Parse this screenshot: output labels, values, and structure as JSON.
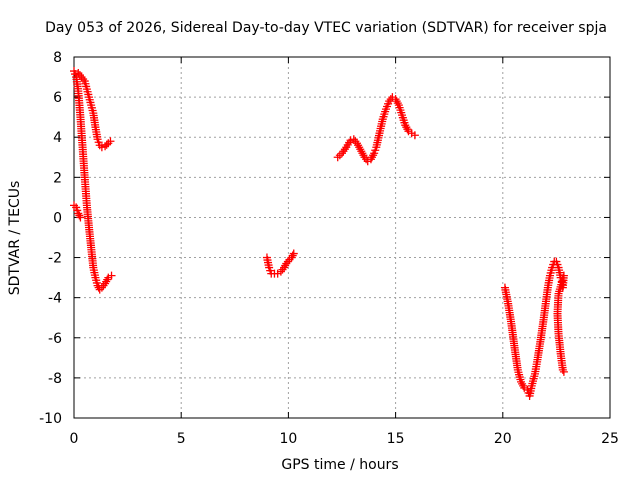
{
  "chart_data": {
    "type": "scatter",
    "title": "Day 053 of 2026, Sidereal Day-to-day VTEC variation (SDTVAR) for receiver spja",
    "xlabel": "GPS time / hours",
    "ylabel": "SDTVAR / TECUs",
    "xlim": [
      0,
      25
    ],
    "ylim": [
      -10,
      8
    ],
    "xticks": [
      0,
      5,
      10,
      15,
      20,
      25
    ],
    "yticks": [
      -10,
      -8,
      -6,
      -4,
      -2,
      0,
      2,
      4,
      6,
      8
    ],
    "grid": true,
    "marker": "plus",
    "color": "#ff0000",
    "series": [
      {
        "points": [
          [
            0.0,
            0.6
          ],
          [
            0.1,
            0.5
          ],
          [
            0.2,
            0.2
          ],
          [
            0.3,
            0.0
          ],
          [
            0.0,
            7.3
          ],
          [
            0.1,
            7.0
          ],
          [
            0.2,
            6.3
          ],
          [
            0.3,
            5.0
          ],
          [
            0.4,
            3.5
          ],
          [
            0.5,
            2.0
          ],
          [
            0.6,
            0.6
          ],
          [
            0.7,
            -0.5
          ],
          [
            0.8,
            -1.5
          ],
          [
            0.9,
            -2.5
          ],
          [
            1.0,
            -3.0
          ],
          [
            1.1,
            -3.4
          ],
          [
            1.2,
            -3.6
          ],
          [
            1.3,
            -3.5
          ],
          [
            1.45,
            -3.3
          ],
          [
            1.6,
            -3.0
          ],
          [
            1.75,
            -2.9
          ],
          [
            0.2,
            7.2
          ],
          [
            0.35,
            7.0
          ],
          [
            0.5,
            6.8
          ],
          [
            0.6,
            6.4
          ],
          [
            0.7,
            6.0
          ],
          [
            0.8,
            5.6
          ],
          [
            0.9,
            5.2
          ],
          [
            1.0,
            4.5
          ],
          [
            1.1,
            3.9
          ],
          [
            1.2,
            3.6
          ],
          [
            1.3,
            3.5
          ],
          [
            1.45,
            3.55
          ],
          [
            1.6,
            3.7
          ],
          [
            1.7,
            3.8
          ],
          [
            9.0,
            -2.0
          ],
          [
            9.1,
            -2.5
          ],
          [
            9.2,
            -2.8
          ],
          [
            9.35,
            -2.8
          ],
          [
            9.5,
            -2.8
          ],
          [
            9.65,
            -2.7
          ],
          [
            9.8,
            -2.5
          ],
          [
            9.9,
            -2.3
          ],
          [
            10.05,
            -2.1
          ],
          [
            10.15,
            -2.0
          ],
          [
            10.25,
            -1.8
          ],
          [
            12.3,
            3.0
          ],
          [
            12.5,
            3.2
          ],
          [
            12.7,
            3.5
          ],
          [
            12.9,
            3.85
          ],
          [
            13.05,
            3.9
          ],
          [
            13.2,
            3.7
          ],
          [
            13.4,
            3.3
          ],
          [
            13.55,
            3.0
          ],
          [
            13.7,
            2.8
          ],
          [
            13.85,
            2.9
          ],
          [
            14.0,
            3.2
          ],
          [
            14.1,
            3.5
          ],
          [
            14.25,
            4.2
          ],
          [
            14.4,
            4.9
          ],
          [
            14.55,
            5.4
          ],
          [
            14.7,
            5.8
          ],
          [
            14.85,
            6.0
          ],
          [
            15.0,
            5.9
          ],
          [
            15.15,
            5.6
          ],
          [
            15.3,
            5.1
          ],
          [
            15.45,
            4.6
          ],
          [
            15.6,
            4.3
          ],
          [
            15.75,
            4.2
          ],
          [
            15.9,
            4.1
          ],
          [
            20.1,
            -3.5
          ],
          [
            20.25,
            -4.3
          ],
          [
            20.4,
            -5.3
          ],
          [
            20.55,
            -6.5
          ],
          [
            20.7,
            -7.6
          ],
          [
            20.85,
            -8.2
          ],
          [
            21.0,
            -8.5
          ],
          [
            21.15,
            -8.6
          ],
          [
            21.25,
            -8.9
          ],
          [
            21.35,
            -8.4
          ],
          [
            21.5,
            -7.8
          ],
          [
            21.6,
            -7.2
          ],
          [
            21.75,
            -6.2
          ],
          [
            21.9,
            -5.1
          ],
          [
            22.0,
            -4.3
          ],
          [
            22.1,
            -3.5
          ],
          [
            22.2,
            -2.9
          ],
          [
            22.3,
            -2.5
          ],
          [
            22.4,
            -2.2
          ],
          [
            22.5,
            -2.2
          ],
          [
            22.6,
            -2.5
          ],
          [
            22.7,
            -3.0
          ],
          [
            22.75,
            -3.2
          ],
          [
            22.8,
            -3.5
          ],
          [
            22.85,
            -2.9
          ],
          [
            22.6,
            -3.8
          ],
          [
            22.55,
            -4.8
          ],
          [
            22.6,
            -5.8
          ],
          [
            22.7,
            -6.8
          ],
          [
            22.8,
            -7.6
          ],
          [
            22.85,
            -7.7
          ]
        ]
      }
    ]
  }
}
